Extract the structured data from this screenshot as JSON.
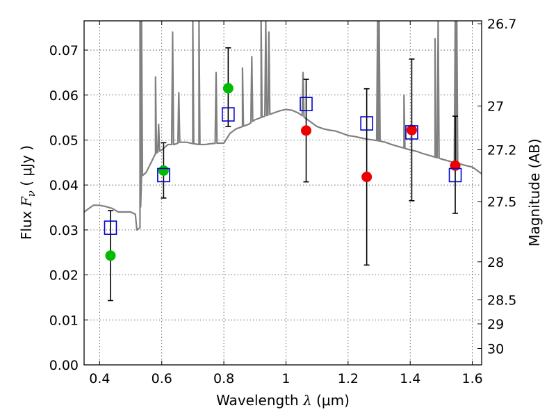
{
  "chart_data": {
    "type": "scatter",
    "title": "",
    "xlabel": {
      "prefix": "Wavelength  ",
      "symbol": "λ",
      "unit": " (μm)"
    },
    "ylabel": {
      "prefix": "Flux  ",
      "symbol": "F",
      "subscript": "ν",
      "unit": "  ( μJy )"
    },
    "y2label": "Magnitude (AB)",
    "xlim": [
      0.35,
      1.63
    ],
    "ylim": [
      0.0,
      0.0765
    ],
    "grid": true,
    "x_ticks": [
      {
        "value": 0.4,
        "label": "0.4"
      },
      {
        "value": 0.6,
        "label": "0.6"
      },
      {
        "value": 0.8,
        "label": "0.8"
      },
      {
        "value": 1.0,
        "label": "1"
      },
      {
        "value": 1.2,
        "label": "1.2"
      },
      {
        "value": 1.4,
        "label": "1.4"
      },
      {
        "value": 1.6,
        "label": "1.6"
      }
    ],
    "y_ticks": [
      {
        "value": 0.0,
        "label": "0.00"
      },
      {
        "value": 0.01,
        "label": "0.01"
      },
      {
        "value": 0.02,
        "label": "0.02"
      },
      {
        "value": 0.03,
        "label": "0.03"
      },
      {
        "value": 0.04,
        "label": "0.04"
      },
      {
        "value": 0.05,
        "label": "0.05"
      },
      {
        "value": 0.06,
        "label": "0.06"
      },
      {
        "value": 0.07,
        "label": "0.07"
      }
    ],
    "y2_ticks": [
      {
        "value": 26.7,
        "label": "26.7"
      },
      {
        "value": 27.0,
        "label": "27"
      },
      {
        "value": 27.2,
        "label": "27.2"
      },
      {
        "value": 27.5,
        "label": "27.5"
      },
      {
        "value": 28.0,
        "label": "28"
      },
      {
        "value": 28.5,
        "label": "28.5"
      },
      {
        "value": 29.0,
        "label": "29"
      },
      {
        "value": 30.0,
        "label": "30"
      }
    ],
    "colors": {
      "spectrum": "#808080",
      "model": "#0000cc",
      "green": "#00bb00",
      "red": "#ee0000",
      "errorbar": "#000000"
    },
    "model_spectrum": {
      "x": [
        0.35,
        0.36,
        0.38,
        0.4,
        0.42,
        0.44,
        0.46,
        0.48,
        0.5,
        0.515,
        0.52,
        0.53,
        0.535,
        0.54,
        0.545,
        0.55,
        0.58,
        0.6,
        0.62,
        0.64,
        0.66,
        0.68,
        0.7,
        0.72,
        0.74,
        0.76,
        0.78,
        0.8,
        0.82,
        0.84,
        0.86,
        0.88,
        0.9,
        0.92,
        0.94,
        0.96,
        0.98,
        1.0,
        1.02,
        1.04,
        1.06,
        1.08,
        1.1,
        1.12,
        1.14,
        1.16,
        1.18,
        1.2,
        1.22,
        1.24,
        1.26,
        1.28,
        1.3,
        1.32,
        1.34,
        1.36,
        1.38,
        1.4,
        1.42,
        1.44,
        1.46,
        1.48,
        1.5,
        1.52,
        1.54,
        1.56,
        1.58,
        1.6,
        1.63
      ],
      "y": [
        0.034,
        0.0345,
        0.0355,
        0.0355,
        0.0352,
        0.0348,
        0.034,
        0.034,
        0.034,
        0.0335,
        0.03,
        0.0305,
        0.042,
        0.0422,
        0.0425,
        0.0428,
        0.047,
        0.0478,
        0.049,
        0.049,
        0.0495,
        0.0495,
        0.0492,
        0.049,
        0.049,
        0.0492,
        0.0493,
        0.0493,
        0.0515,
        0.0525,
        0.053,
        0.0535,
        0.0545,
        0.055,
        0.0555,
        0.056,
        0.0565,
        0.0568,
        0.0566,
        0.056,
        0.055,
        0.054,
        0.053,
        0.0525,
        0.0522,
        0.052,
        0.0515,
        0.051,
        0.0508,
        0.0505,
        0.0502,
        0.05,
        0.0498,
        0.0495,
        0.049,
        0.0486,
        0.0482,
        0.0478,
        0.0475,
        0.047,
        0.0466,
        0.0462,
        0.0458,
        0.0454,
        0.045,
        0.0447,
        0.0443,
        0.044,
        0.0425
      ],
      "emission_lines": [
        {
          "x": 0.53,
          "peak": 0.0765
        },
        {
          "x": 0.535,
          "peak": 0.0765
        },
        {
          "x": 0.58,
          "peak": 0.064
        },
        {
          "x": 0.59,
          "peak": 0.0535
        },
        {
          "x": 0.635,
          "peak": 0.074
        },
        {
          "x": 0.655,
          "peak": 0.0605
        },
        {
          "x": 0.7,
          "peak": 0.0765
        },
        {
          "x": 0.72,
          "peak": 0.0765
        },
        {
          "x": 0.775,
          "peak": 0.065
        },
        {
          "x": 0.86,
          "peak": 0.066
        },
        {
          "x": 0.89,
          "peak": 0.0685
        },
        {
          "x": 0.92,
          "peak": 0.0765
        },
        {
          "x": 0.935,
          "peak": 0.0765
        },
        {
          "x": 0.945,
          "peak": 0.074
        },
        {
          "x": 1.055,
          "peak": 0.065
        },
        {
          "x": 1.295,
          "peak": 0.0765
        },
        {
          "x": 1.3,
          "peak": 0.0765
        },
        {
          "x": 1.38,
          "peak": 0.06
        },
        {
          "x": 1.48,
          "peak": 0.0725
        },
        {
          "x": 1.49,
          "peak": 0.0765
        },
        {
          "x": 1.545,
          "peak": 0.0765
        },
        {
          "x": 1.55,
          "peak": 0.0765
        }
      ]
    },
    "model_photometry": {
      "x": [
        0.435,
        0.606,
        0.814,
        1.065,
        1.26,
        1.405,
        1.545
      ],
      "y": [
        0.0305,
        0.0422,
        0.0557,
        0.058,
        0.0537,
        0.0517,
        0.0422
      ]
    },
    "observed": [
      {
        "x": 0.435,
        "y": 0.0243,
        "err_low": 0.0143,
        "err_high": 0.0343,
        "color": "green"
      },
      {
        "x": 0.606,
        "y": 0.0432,
        "err_low": 0.0371,
        "err_high": 0.0494,
        "color": "green"
      },
      {
        "x": 0.814,
        "y": 0.0615,
        "err_low": 0.053,
        "err_high": 0.0705,
        "color": "green"
      },
      {
        "x": 1.065,
        "y": 0.0521,
        "err_low": 0.0407,
        "err_high": 0.0635,
        "color": "red"
      },
      {
        "x": 1.26,
        "y": 0.0418,
        "err_low": 0.0222,
        "err_high": 0.0614,
        "color": "red"
      },
      {
        "x": 1.405,
        "y": 0.0522,
        "err_low": 0.0365,
        "err_high": 0.068,
        "color": "red"
      },
      {
        "x": 1.545,
        "y": 0.0443,
        "err_low": 0.0337,
        "err_high": 0.0553,
        "color": "red"
      }
    ]
  }
}
